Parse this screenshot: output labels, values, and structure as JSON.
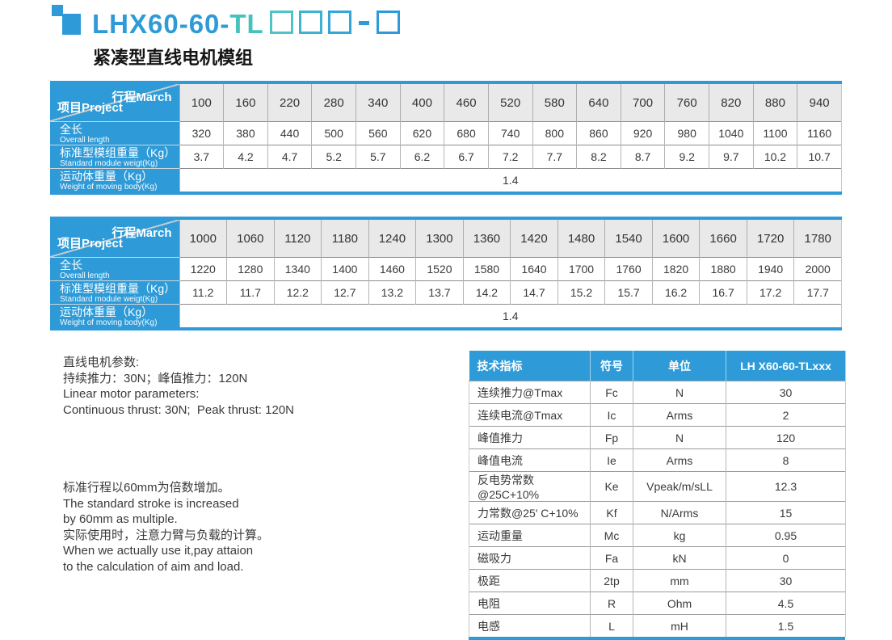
{
  "header": {
    "model_prefix": "LHX60-60-",
    "model_tl": "TL",
    "subtitle": "紧凑型直线电机模组"
  },
  "stroke_tables": [
    {
      "corner_top": "行程March",
      "corner_bottom": "项目Project",
      "strokes": [
        100,
        160,
        220,
        280,
        340,
        400,
        460,
        520,
        580,
        640,
        700,
        760,
        820,
        880,
        940
      ],
      "rows": [
        {
          "label_cn": "全长",
          "label_en": "Overall length",
          "values": [
            320,
            380,
            440,
            500,
            560,
            620,
            680,
            740,
            800,
            860,
            920,
            980,
            1040,
            1100,
            1160
          ]
        },
        {
          "label_cn": "标准型模组重量（Kg）",
          "label_en": "Standard module weigt(Kg)",
          "values": [
            "3.7",
            "4.2",
            "4.7",
            "5.2",
            "5.7",
            "6.2",
            "6.7",
            "7.2",
            "7.7",
            "8.2",
            "8.7",
            "9.2",
            "9.7",
            "10.2",
            "10.7"
          ]
        },
        {
          "label_cn": "运动体重量（Kg）",
          "label_en": "Weight of moving body(Kg)",
          "merged_value": "1.4"
        }
      ]
    },
    {
      "corner_top": "行程March",
      "corner_bottom": "项目Project",
      "strokes": [
        1000,
        1060,
        1120,
        1180,
        1240,
        1300,
        1360,
        1420,
        1480,
        1540,
        1600,
        1660,
        1720,
        1780
      ],
      "rows": [
        {
          "label_cn": "全长",
          "label_en": "Overall length",
          "values": [
            1220,
            1280,
            1340,
            1400,
            1460,
            1520,
            1580,
            1640,
            1700,
            1760,
            1820,
            1880,
            1940,
            2000
          ]
        },
        {
          "label_cn": "标准型模组重量（Kg）",
          "label_en": "Standard module weigt(Kg)",
          "values": [
            "11.2",
            "11.7",
            "12.2",
            "12.7",
            "13.2",
            "13.7",
            "14.2",
            "14.7",
            "15.2",
            "15.7",
            "16.2",
            "16.7",
            "17.2",
            "17.7"
          ]
        },
        {
          "label_cn": "运动体重量（Kg）",
          "label_en": "Weight of moving body(Kg)",
          "merged_value": "1.4"
        }
      ]
    }
  ],
  "notes": {
    "motor_params": [
      "直线电机参数:",
      "持续推力：30N；峰值推力：120N",
      "Linear motor parameters:",
      "Continuous thrust: 30N;  Peak thrust: 120N"
    ],
    "stroke_note": [
      "标准行程以60mm为倍数增加。",
      "The standard stroke is increased",
      "by 60mm as multiple.",
      "实际使用时，注意力臂与负载的计算。",
      "When we actually use it,pay attaion",
      "to the calculation of aim and load."
    ]
  },
  "spec_table": {
    "headers": [
      "技术指标",
      "符号",
      "单位",
      "LH X60-60-TLxxx"
    ],
    "rows": [
      [
        "连续推力@Tmax",
        "Fc",
        "N",
        "30"
      ],
      [
        "连续电流@Tmax",
        "Ic",
        "Arms",
        "2"
      ],
      [
        "峰值推力",
        "Fp",
        "N",
        "120"
      ],
      [
        "峰值电流",
        "Ie",
        "Arms",
        "8"
      ],
      [
        "反电势常数@25C+10%",
        "Ke",
        "Vpeak/m/sLL",
        "12.3"
      ],
      [
        "力常数@25′ C+10%",
        "Kf",
        "N/Arms",
        "15"
      ],
      [
        "运动重量",
        "Mc",
        "kg",
        "0.95"
      ],
      [
        "磁吸力",
        "Fa",
        "kN",
        "0"
      ],
      [
        "极距",
        "2tp",
        "mm",
        "30"
      ],
      [
        "电阻",
        "R",
        "Ohm",
        "4.5"
      ],
      [
        "电感",
        "L",
        "mH",
        "1.5"
      ]
    ]
  },
  "colors": {
    "primary_blue": "#2E9BD8",
    "title_teal": "#45C2BE",
    "header_gray": "#E9E9EA"
  }
}
